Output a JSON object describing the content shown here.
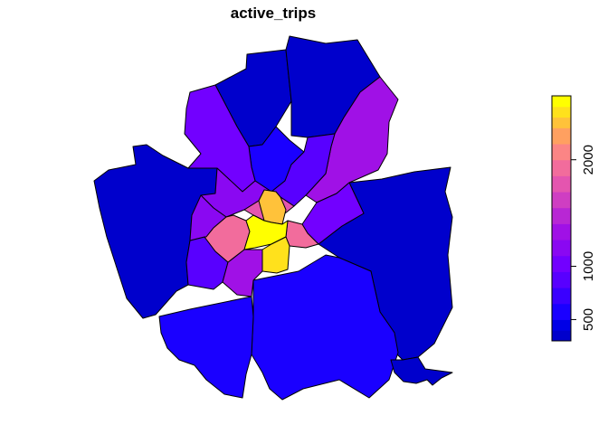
{
  "title": "active_trips",
  "legend": {
    "min": 300,
    "max": 2500,
    "ticks": [
      {
        "value": 500,
        "label": "500"
      },
      {
        "value": 1000,
        "label": "1000"
      },
      {
        "value": 2000,
        "label": "2000"
      }
    ],
    "bins": [
      {
        "from": 300,
        "to": 400,
        "color": "#0000cc"
      },
      {
        "from": 400,
        "to": 500,
        "color": "#0000e6"
      },
      {
        "from": 500,
        "to": 650,
        "color": "#1a00ff"
      },
      {
        "from": 650,
        "to": 800,
        "color": "#3a00ff"
      },
      {
        "from": 800,
        "to": 950,
        "color": "#5800ff"
      },
      {
        "from": 950,
        "to": 1100,
        "color": "#7200ff"
      },
      {
        "from": 1100,
        "to": 1250,
        "color": "#8a08f2"
      },
      {
        "from": 1250,
        "to": 1400,
        "color": "#a011e6"
      },
      {
        "from": 1400,
        "to": 1550,
        "color": "#b827d4"
      },
      {
        "from": 1550,
        "to": 1700,
        "color": "#cf3ec2"
      },
      {
        "from": 1700,
        "to": 1850,
        "color": "#e455af"
      },
      {
        "from": 1850,
        "to": 2000,
        "color": "#f26c9c"
      },
      {
        "from": 2000,
        "to": 2150,
        "color": "#fb8585"
      },
      {
        "from": 2150,
        "to": 2300,
        "color": "#ffa060"
      },
      {
        "from": 2300,
        "to": 2400,
        "color": "#ffc23a"
      },
      {
        "from": 2400,
        "to": 2500,
        "color": "#ffe11c"
      },
      {
        "from": 2500,
        "to": 2600,
        "color": "#ffff00"
      }
    ]
  },
  "zones": [
    {
      "id": "west",
      "value": 350
    },
    {
      "id": "east",
      "value": 350
    },
    {
      "id": "north-1",
      "value": 380
    },
    {
      "id": "north-2",
      "value": 380
    },
    {
      "id": "south",
      "value": 560
    },
    {
      "id": "southwest",
      "value": 600
    },
    {
      "id": "north-inner",
      "value": 560
    },
    {
      "id": "se-small",
      "value": 330
    },
    {
      "id": "nw-ring",
      "value": 1000
    },
    {
      "id": "ne-ring",
      "value": 1250
    },
    {
      "id": "n-ring",
      "value": 900
    },
    {
      "id": "w-ring",
      "value": 1150
    },
    {
      "id": "e-ring",
      "value": 950
    },
    {
      "id": "sw-ring",
      "value": 820
    },
    {
      "id": "s-ring",
      "value": 1350
    },
    {
      "id": "center-n",
      "value": 1800
    },
    {
      "id": "center-w",
      "value": 1900
    },
    {
      "id": "center-e",
      "value": 1950
    },
    {
      "id": "center-nn",
      "value": 2300
    },
    {
      "id": "center-s",
      "value": 2450
    },
    {
      "id": "center",
      "value": 2600
    },
    {
      "id": "w-small",
      "value": 1150
    }
  ]
}
